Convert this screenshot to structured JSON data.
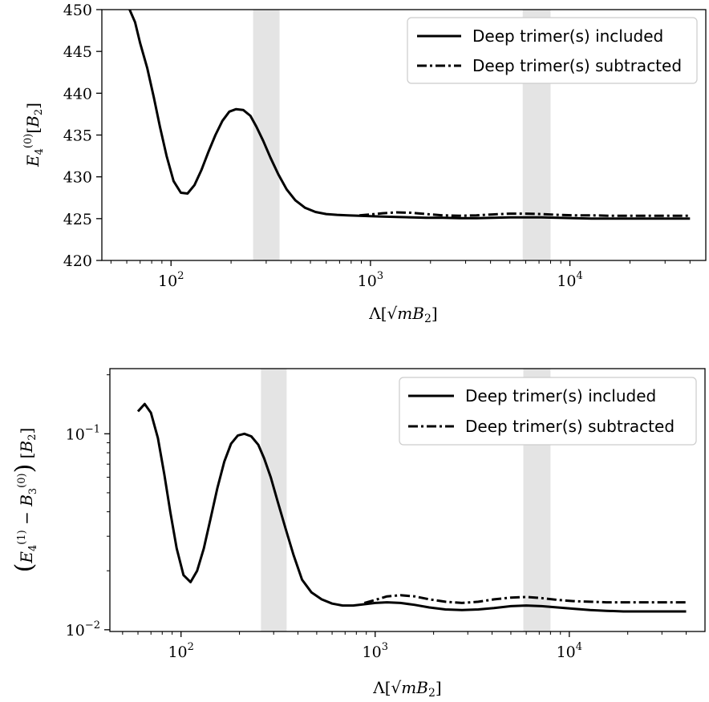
{
  "chart_data": [
    {
      "type": "line",
      "xlabel": "Λ[√mB₂]",
      "ylabel": "E₄⁽⁰⁾[B₂]",
      "x_scale": "log",
      "xlim": [
        45,
        48000
      ],
      "ylim": [
        420,
        450
      ],
      "y_ticks": [
        420,
        425,
        430,
        435,
        440,
        445,
        450
      ],
      "x_ticks": [
        {
          "value": 100,
          "base": "10",
          "exp": "2"
        },
        {
          "value": 1000,
          "base": "10",
          "exp": "3"
        },
        {
          "value": 10000,
          "base": "10",
          "exp": "4"
        }
      ],
      "legend_position": "upper right",
      "bands": [
        [
          258,
          350
        ],
        [
          5800,
          8000
        ]
      ],
      "series": [
        {
          "name": "Deep trimer(s) included",
          "style": "solid",
          "x": [
            62,
            66,
            70,
            76,
            82,
            88,
            95,
            103,
            112,
            121,
            131,
            142,
            154,
            167,
            181,
            196,
            212,
            230,
            250,
            268,
            290,
            315,
            345,
            380,
            420,
            470,
            530,
            600,
            680,
            770,
            880,
            1000,
            1150,
            1350,
            1600,
            1900,
            2300,
            2800,
            3400,
            4100,
            5000,
            6000,
            7200,
            8700,
            10500,
            12800,
            15500,
            19000,
            23000,
            28000,
            34000,
            40000
          ],
          "y": [
            450,
            448.5,
            446,
            443,
            439.5,
            436,
            432.5,
            429.5,
            428.1,
            428.0,
            429,
            430.8,
            433,
            435,
            436.7,
            437.8,
            438.1,
            438.0,
            437.3,
            436,
            434.3,
            432.3,
            430.3,
            428.5,
            427.2,
            426.3,
            425.8,
            425.55,
            425.45,
            425.4,
            425.35,
            425.3,
            425.25,
            425.2,
            425.15,
            425.1,
            425.1,
            425.05,
            425.05,
            425.1,
            425.15,
            425.15,
            425.15,
            425.1,
            425.05,
            425.0,
            425.0,
            425.0,
            425.0,
            425.0,
            425.0,
            425.0
          ]
        },
        {
          "name": "Deep trimer(s) subtracted",
          "style": "dashdot",
          "x": [
            880,
            1000,
            1150,
            1350,
            1600,
            1900,
            2300,
            2800,
            3400,
            4100,
            5000,
            6000,
            7200,
            8700,
            10500,
            12800,
            15500,
            19000,
            23000,
            28000,
            34000,
            40000
          ],
          "y": [
            425.4,
            425.5,
            425.65,
            425.75,
            425.7,
            425.55,
            425.4,
            425.35,
            425.4,
            425.5,
            425.6,
            425.6,
            425.55,
            425.45,
            425.4,
            425.4,
            425.35,
            425.35,
            425.35,
            425.35,
            425.35,
            425.35
          ]
        }
      ]
    },
    {
      "type": "line",
      "xlabel": "Λ[√mB₂]",
      "ylabel": "(E₄⁽¹⁾ − B₃⁽⁰⁾) [B₂]",
      "x_scale": "log",
      "y_scale": "log",
      "xlim": [
        43,
        50000
      ],
      "ylim": [
        0.0098,
        0.215
      ],
      "y_ticks": [
        {
          "value": 0.1,
          "base": "10",
          "exp": "−1"
        },
        {
          "value": 0.01,
          "base": "10",
          "exp": "−2"
        }
      ],
      "x_ticks": [
        {
          "value": 100,
          "base": "10",
          "exp": "2"
        },
        {
          "value": 1000,
          "base": "10",
          "exp": "3"
        },
        {
          "value": 10000,
          "base": "10",
          "exp": "4"
        }
      ],
      "legend_position": "upper right",
      "bands": [
        [
          258,
          350
        ],
        [
          5800,
          8000
        ]
      ],
      "series": [
        {
          "name": "Deep trimer(s) included",
          "style": "solid",
          "x": [
            60,
            65,
            70,
            76,
            82,
            88,
            95,
            103,
            112,
            121,
            131,
            142,
            154,
            167,
            181,
            196,
            212,
            230,
            250,
            268,
            290,
            315,
            345,
            380,
            420,
            470,
            530,
            600,
            680,
            770,
            880,
            1000,
            1150,
            1350,
            1600,
            1900,
            2300,
            2800,
            3400,
            4100,
            5000,
            6000,
            7200,
            8700,
            10500,
            12800,
            15500,
            19000,
            23000,
            28000,
            34000,
            40000
          ],
          "y": [
            0.13,
            0.142,
            0.128,
            0.095,
            0.062,
            0.04,
            0.026,
            0.019,
            0.0175,
            0.02,
            0.026,
            0.037,
            0.053,
            0.072,
            0.089,
            0.098,
            0.1,
            0.097,
            0.088,
            0.075,
            0.06,
            0.045,
            0.033,
            0.024,
            0.018,
            0.0155,
            0.0143,
            0.0136,
            0.0133,
            0.0133,
            0.0135,
            0.0137,
            0.0138,
            0.0137,
            0.0134,
            0.013,
            0.0127,
            0.0126,
            0.0127,
            0.0129,
            0.0132,
            0.0133,
            0.0132,
            0.013,
            0.0128,
            0.0126,
            0.0125,
            0.0124,
            0.0124,
            0.0124,
            0.0124,
            0.0124
          ]
        },
        {
          "name": "Deep trimer(s) subtracted",
          "style": "dashdot",
          "x": [
            880,
            1000,
            1150,
            1350,
            1600,
            1900,
            2300,
            2800,
            3400,
            4100,
            5000,
            6000,
            7200,
            8700,
            10500,
            12800,
            15500,
            19000,
            23000,
            28000,
            34000,
            40000
          ],
          "y": [
            0.0137,
            0.0142,
            0.0148,
            0.015,
            0.0148,
            0.0143,
            0.0139,
            0.0137,
            0.0139,
            0.0143,
            0.0146,
            0.0147,
            0.0145,
            0.0142,
            0.014,
            0.0139,
            0.0138,
            0.0138,
            0.0138,
            0.0138,
            0.0138,
            0.0138
          ]
        }
      ]
    }
  ]
}
